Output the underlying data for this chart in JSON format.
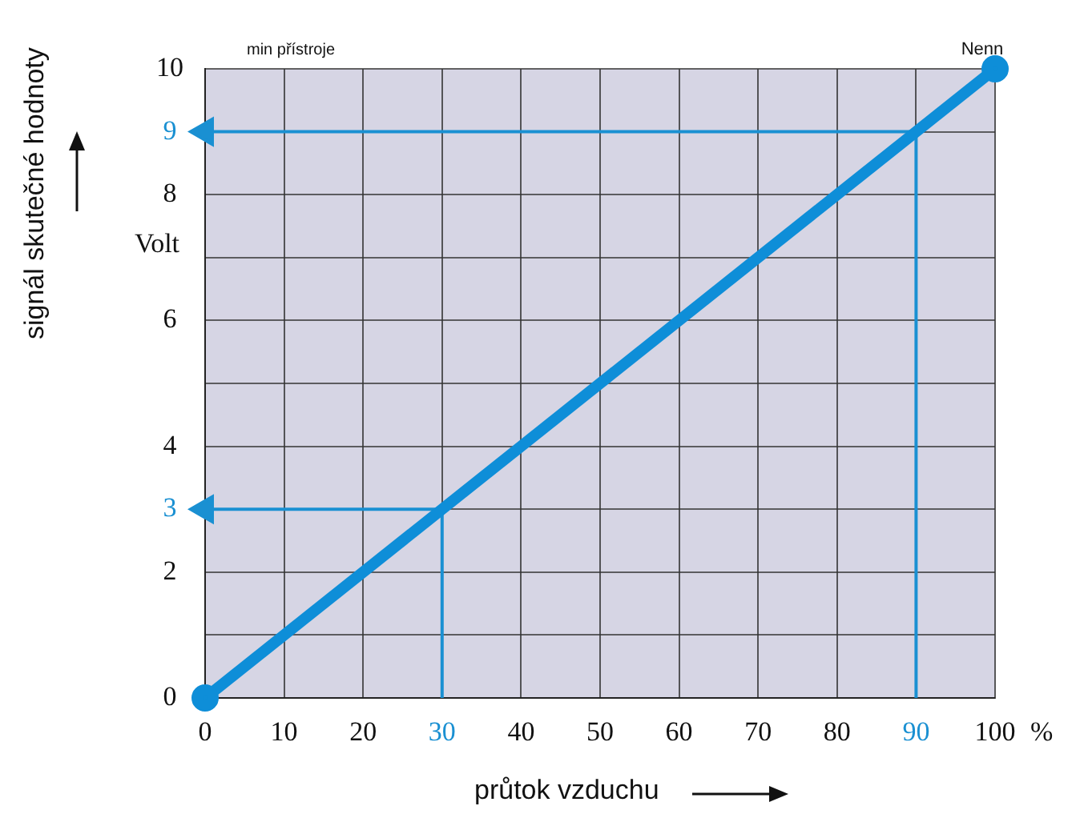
{
  "chart_data": {
    "type": "line",
    "ylabel": "signál skutečné hodnoty",
    "xlabel": "průtok vzduchu",
    "xlim": [
      0,
      100
    ],
    "xticks": [
      0,
      10,
      20,
      30,
      40,
      50,
      60,
      70,
      80,
      90,
      100
    ],
    "ylim": [
      0,
      10
    ],
    "yticks": [
      0,
      {
        "value": 1,
        "label": null
      },
      2,
      3,
      4,
      {
        "value": 5,
        "label": null
      },
      6,
      {
        "value": 7,
        "label": null
      },
      8,
      9,
      10
    ],
    "grid": true,
    "legend": false,
    "series": [
      {
        "x": [
          0,
          100
        ],
        "values": [
          0,
          10
        ],
        "color": "#0e8ed8",
        "marker": "circle"
      },
      {
        "type": "line",
        "x": [
          30,
          30,
          0
        ],
        "values": [
          0,
          3,
          3
        ],
        "color": "#1a90d2",
        "marker": "none"
      },
      {
        "type": "line",
        "x": [
          90,
          90,
          0
        ],
        "values": [
          0,
          9,
          9
        ],
        "color": "#1a90d2",
        "marker": "none"
      }
    ],
    "annotations": [
      "min přístroje",
      "Volt",
      "%",
      {
        "text": "Nenn",
        "x": 100,
        "y": 10
      }
    ]
  }
}
